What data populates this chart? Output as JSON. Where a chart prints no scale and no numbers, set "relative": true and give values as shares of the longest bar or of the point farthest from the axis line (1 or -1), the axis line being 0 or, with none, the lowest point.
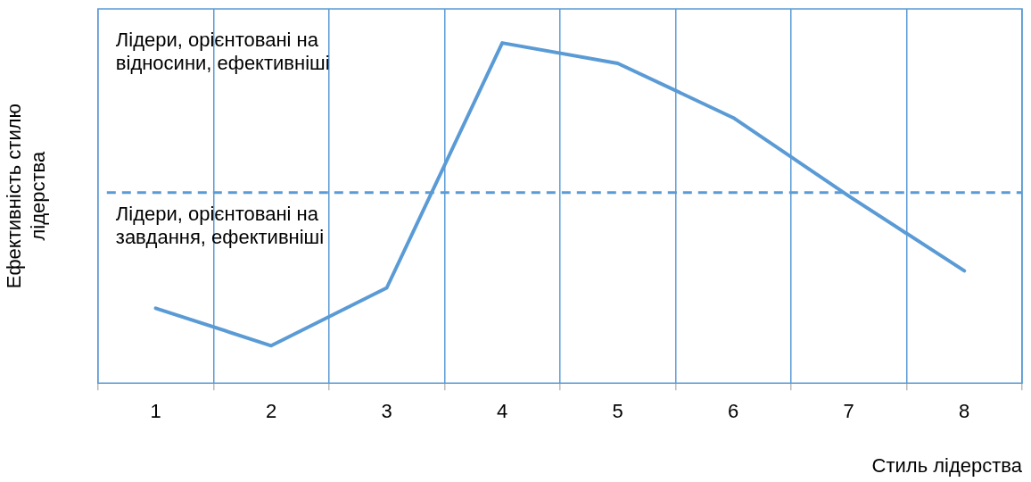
{
  "chart_data": {
    "type": "line",
    "relative": true,
    "xlabel": "Стиль лідерства",
    "ylabel": "Ефективність стилю лідерства",
    "categories": [
      "1",
      "2",
      "3",
      "4",
      "5",
      "6",
      "7",
      "8"
    ],
    "series": [
      {
        "color": "#5b9bd5",
        "values": [
          0.22,
          0.11,
          0.28,
          1,
          0.94,
          0.78,
          0.55,
          0.33
        ]
      }
    ],
    "ref_lines": [
      {
        "axis": "y",
        "value": 0.56,
        "color": "#5b9bd5",
        "line_style": "dashed"
      }
    ],
    "annotations": [
      "Лідери, орієнтовані на відносини, ефективніші",
      "Лідери, орієнтовані на завдання, ефективніші"
    ],
    "grid": "x",
    "legend": false,
    "marker": "none",
    "line_style": "solid"
  }
}
